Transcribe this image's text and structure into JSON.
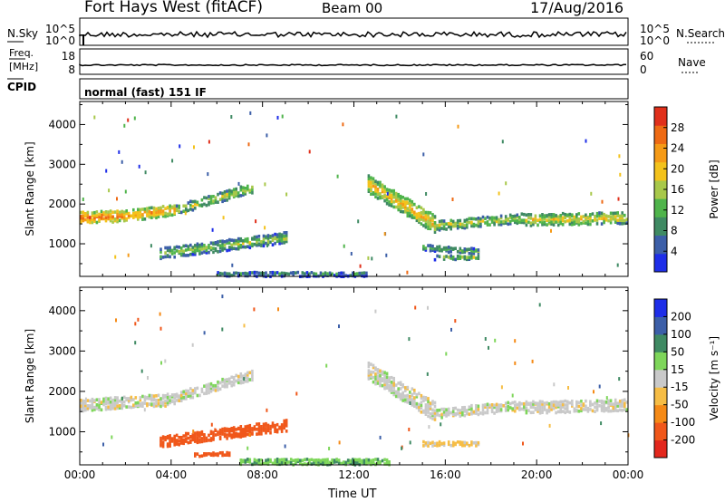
{
  "header": {
    "title": "Fort Hays West (fitACF)",
    "beam": "Beam 00",
    "date": "17/Aug/2016"
  },
  "labels": {
    "nsky": "N.Sky",
    "nsearch": "N.Search",
    "freq": "Freq.",
    "mhz": "[MHz]",
    "nave": "Nave",
    "cpid": "CPID",
    "mode": "normal (fast) 151 IF",
    "noise_ticks": [
      "10^5",
      "10^0"
    ],
    "freq_ticks": [
      "18",
      "8"
    ],
    "nave_ticks": [
      "60",
      "0"
    ]
  },
  "chart_data": [
    {
      "type": "heatmap",
      "quantity": "Power",
      "ylabel": "Slant Range [km]",
      "xlabel": "Time UT",
      "x_ticks": [
        "00:00",
        "04:00",
        "08:00",
        "12:00",
        "16:00",
        "20:00",
        "00:00"
      ],
      "y_ticks": [
        1000,
        2000,
        3000,
        4000
      ],
      "ylim": [
        180,
        4580
      ],
      "xlim_hours": [
        0,
        24
      ],
      "colorbar": {
        "label": "Power [dB]",
        "ticks": [
          4,
          8,
          12,
          16,
          20,
          24,
          28
        ],
        "range": [
          0,
          32
        ],
        "colors": [
          "#1e2ee8",
          "#3c5fa8",
          "#3f8a63",
          "#4fb44b",
          "#a8c84a",
          "#f3c21b",
          "#f59a16",
          "#ee6a14",
          "#e0301b"
        ]
      },
      "series": [
        {
          "start_h": 0.0,
          "end_h": 2.0,
          "r_start": 1650,
          "r_end": 1700,
          "width": 300,
          "value": 20
        },
        {
          "start_h": 2.0,
          "end_h": 4.2,
          "r_start": 1700,
          "r_end": 1850,
          "width": 280,
          "value": 18
        },
        {
          "start_h": 4.2,
          "end_h": 7.5,
          "r_start": 1850,
          "r_end": 2400,
          "width": 250,
          "value": 12
        },
        {
          "start_h": 3.5,
          "end_h": 9.0,
          "r_start": 750,
          "r_end": 1150,
          "width": 280,
          "value": 10
        },
        {
          "start_h": 6.0,
          "end_h": 12.5,
          "r_start": 230,
          "r_end": 230,
          "width": 120,
          "value": 6
        },
        {
          "start_h": 12.6,
          "end_h": 15.5,
          "r_start": 2500,
          "r_end": 1500,
          "width": 450,
          "value": 16
        },
        {
          "start_h": 15.5,
          "end_h": 19.5,
          "r_start": 1450,
          "r_end": 1650,
          "width": 250,
          "value": 12
        },
        {
          "start_h": 19.5,
          "end_h": 24.0,
          "r_start": 1600,
          "r_end": 1650,
          "width": 300,
          "value": 14
        },
        {
          "start_h": 15.0,
          "end_h": 17.5,
          "r_start": 900,
          "r_end": 800,
          "width": 150,
          "value": 8
        },
        {
          "start_h": 15.5,
          "end_h": 17.5,
          "r_start": 650,
          "r_end": 650,
          "width": 120,
          "value": 10
        }
      ]
    },
    {
      "type": "heatmap",
      "quantity": "Velocity",
      "ylabel": "Slant Range [km]",
      "xlabel": "Time UT",
      "x_ticks": [
        "00:00",
        "04:00",
        "08:00",
        "12:00",
        "16:00",
        "20:00",
        "00:00"
      ],
      "y_ticks": [
        1000,
        2000,
        3000,
        4000
      ],
      "ylim": [
        180,
        4580
      ],
      "xlim_hours": [
        0,
        24
      ],
      "colorbar": {
        "label": "Velocity [m s⁻¹]",
        "tick_labels": [
          "-200",
          "-100",
          "-50",
          "-15",
          "15",
          "50",
          "100",
          "200"
        ],
        "colors": [
          "#e3271d",
          "#f0571a",
          "#f58a16",
          "#f6bd45",
          "#c9c9c9",
          "#7ed65a",
          "#3f8a63",
          "#3c5fa8",
          "#1e2ee8"
        ]
      },
      "series": [
        {
          "start_h": 0.0,
          "end_h": 4.2,
          "r_start": 1650,
          "r_end": 1800,
          "width": 300,
          "value": 0
        },
        {
          "start_h": 4.2,
          "end_h": 7.5,
          "r_start": 1850,
          "r_end": 2400,
          "width": 250,
          "value": 0
        },
        {
          "start_h": 3.5,
          "end_h": 9.0,
          "r_start": 750,
          "r_end": 1150,
          "width": 280,
          "value": -150
        },
        {
          "start_h": 5.0,
          "end_h": 6.5,
          "r_start": 420,
          "r_end": 450,
          "width": 80,
          "value": -120
        },
        {
          "start_h": 7.0,
          "end_h": 13.5,
          "r_start": 250,
          "r_end": 250,
          "width": 150,
          "value": 40
        },
        {
          "start_h": 12.6,
          "end_h": 15.5,
          "r_start": 2500,
          "r_end": 1500,
          "width": 450,
          "value": 0
        },
        {
          "start_h": 15.5,
          "end_h": 19.5,
          "r_start": 1450,
          "r_end": 1650,
          "width": 250,
          "value": 0
        },
        {
          "start_h": 19.5,
          "end_h": 24.0,
          "r_start": 1600,
          "r_end": 1650,
          "width": 300,
          "value": 0
        },
        {
          "start_h": 15.0,
          "end_h": 17.5,
          "r_start": 700,
          "r_end": 700,
          "width": 120,
          "value": -20
        }
      ]
    }
  ]
}
